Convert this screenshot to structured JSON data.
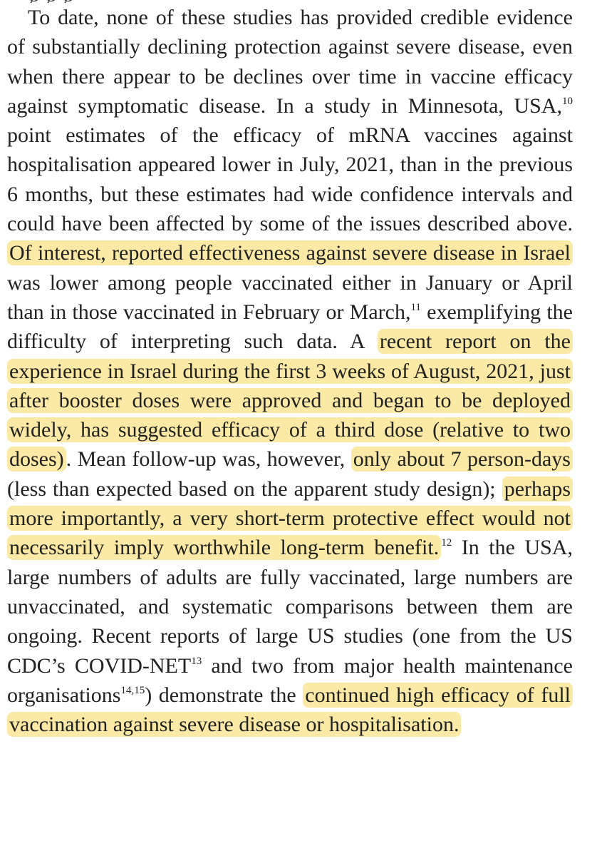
{
  "paragraph": {
    "s01": "To date, none of these studies has provided credible evidence of substantially declining protection against severe disease, even when there appear to be declines over time in vaccine efficacy against symptomatic disease. In a study in Minnesota, USA,",
    "ref10": "10",
    "s02": " point estimates of the efficacy of mRNA vaccines against hospitalisation appeared lower in July, 2021, than in the previous 6 months, but these estimates had wide confidence intervals and could have been affected by some of the issues described above. ",
    "h01": "Of interest, reported effectiveness against severe disease in Israel",
    "s03": " was lower among people vaccinated either in January or April than in those vaccinated in February or March,",
    "ref11": "11",
    "s04": " exemplifying the difficulty of interpreting such data. A ",
    "h02": "recent report on the experience in Israel during the first 3 weeks of August, 2021, just after booster doses were approved and began to be deployed widely, has suggested efficacy of a third dose (relative to two doses)",
    "s05": ". Mean follow-up was, however, ",
    "h03": "only about 7 person-days",
    "s06": " (less than expected based on the apparent study design); ",
    "h04": "perhaps more importantly, a very short-term protective effect would not necessarily imply worthwhile long-term benefit.",
    "ref12": "12",
    "s07": " In the USA, large numbers of adults are fully vaccinated, large numbers are unvaccinated, and systematic comparisons between them are ongoing. Recent reports of large US studies (one from the US CDC’s COVID-NET",
    "ref13": "13",
    "s08": " and two from major health maintenance organisations",
    "ref1415": "14,15",
    "s09": ") demonstrate the ",
    "h05": "continued high efficacy of full vaccination against severe disease or hospitalisation.",
    "highlight_color": "#fbe9a6",
    "text_color": "#222222"
  }
}
